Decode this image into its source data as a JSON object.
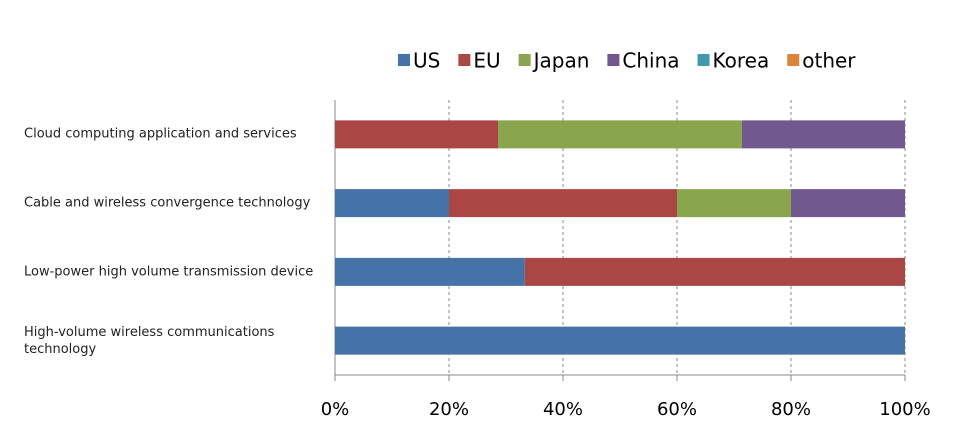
{
  "chart_data": {
    "type": "stacked-bar-horizontal",
    "categories": [
      "Cloud computing application and services",
      "Cable and wireless convergence technology",
      "Low-power high volume transmission device",
      "High-volume wireless communications technology"
    ],
    "series": [
      {
        "name": "US",
        "color": "#4572a7",
        "values": [
          0,
          20,
          33.3,
          100
        ]
      },
      {
        "name": "EU",
        "color": "#aa4643",
        "values": [
          28.6,
          40,
          66.7,
          0
        ]
      },
      {
        "name": "Japan",
        "color": "#89a54e",
        "values": [
          42.8,
          20,
          0,
          0
        ]
      },
      {
        "name": "China",
        "color": "#71588f",
        "values": [
          28.6,
          20,
          0,
          0
        ]
      },
      {
        "name": "Korea",
        "color": "#4198af",
        "values": [
          0,
          0,
          0,
          0
        ]
      },
      {
        "name": "other",
        "color": "#db843d",
        "values": [
          0,
          0,
          0,
          0
        ]
      }
    ],
    "xlim": [
      0,
      100
    ],
    "xticks": [
      {
        "value": 0,
        "label": "0%"
      },
      {
        "value": 20,
        "label": "20%"
      },
      {
        "value": 40,
        "label": "40%"
      },
      {
        "value": 60,
        "label": "60%"
      },
      {
        "value": 80,
        "label": "80%"
      },
      {
        "value": 100,
        "label": "100%"
      }
    ],
    "grid": true,
    "legend": "top"
  }
}
